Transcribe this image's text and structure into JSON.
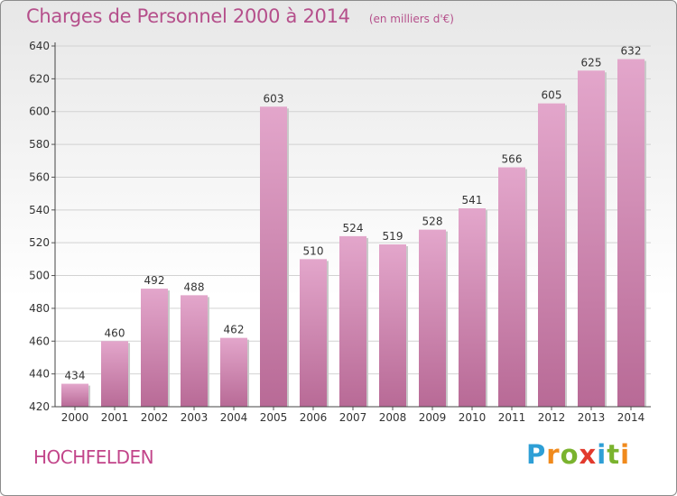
{
  "header": {
    "title": "Charges de Personnel 2000 à 2014",
    "subtitle": "(en milliers d'€)"
  },
  "footer": {
    "commune": "HOCHFELDEN",
    "logo_text": "Proxiti"
  },
  "colors": {
    "bar_top": "#e3a6cb",
    "bar_bottom": "#b86a96",
    "title": "#b54f8b",
    "grid": "#d0d0d0"
  },
  "chart_data": {
    "type": "bar",
    "title": "Charges de Personnel 2000 à 2014",
    "subtitle": "(en milliers d'€)",
    "categories": [
      "2000",
      "2001",
      "2002",
      "2003",
      "2004",
      "2005",
      "2006",
      "2007",
      "2008",
      "2009",
      "2010",
      "2011",
      "2012",
      "2013",
      "2014"
    ],
    "values": [
      434,
      460,
      492,
      488,
      462,
      603,
      510,
      524,
      519,
      528,
      541,
      566,
      605,
      625,
      632
    ],
    "ylim": [
      420,
      640
    ],
    "yticks": [
      420,
      440,
      460,
      480,
      500,
      520,
      540,
      560,
      580,
      600,
      620,
      640
    ],
    "grid": true,
    "legend": "none"
  }
}
